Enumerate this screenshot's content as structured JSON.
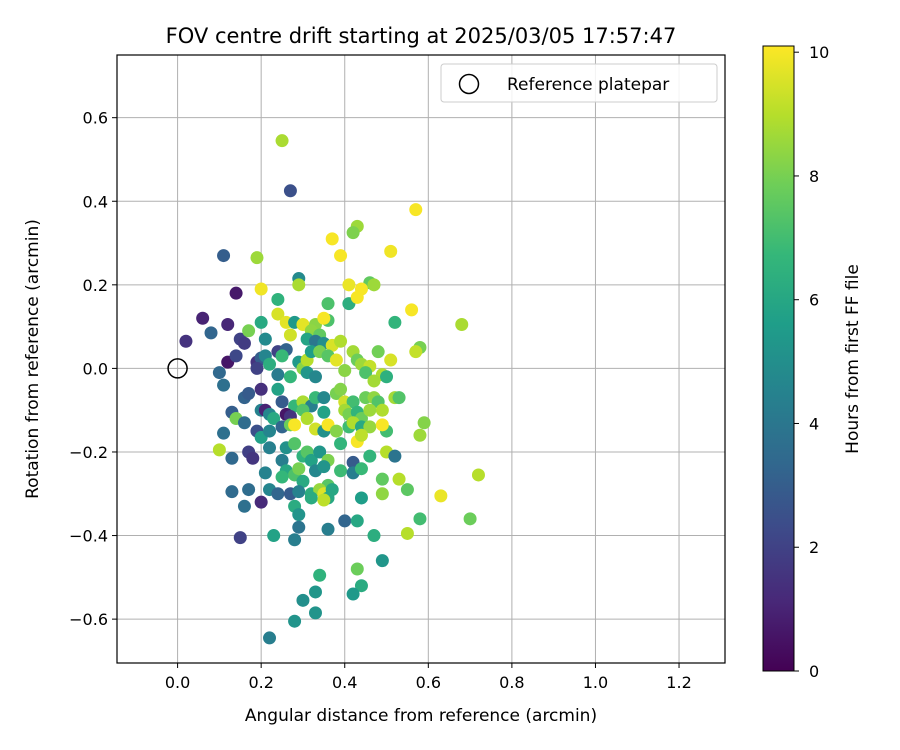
{
  "chart_data": {
    "type": "scatter",
    "title": "FOV centre drift starting at 2025/03/05 17:57:47",
    "xlabel": "Angular distance from reference (arcmin)",
    "ylabel": "Rotation from reference (arcmin)",
    "xlim": [
      -0.145,
      1.31
    ],
    "ylim": [
      -0.705,
      0.75
    ],
    "xticks": [
      "0.0",
      "0.2",
      "0.4",
      "0.6",
      "0.8",
      "1.0",
      "1.2"
    ],
    "xtick_values": [
      0.0,
      0.2,
      0.4,
      0.6,
      0.8,
      1.0,
      1.2
    ],
    "yticks": [
      "−0.6",
      "−0.4",
      "−0.2",
      "0.0",
      "0.2",
      "0.4",
      "0.6"
    ],
    "ytick_values": [
      -0.6,
      -0.4,
      -0.2,
      0.0,
      0.2,
      0.4,
      0.6
    ],
    "grid": true,
    "legend": {
      "placement": "top-right",
      "entries": [
        "Reference platepar"
      ]
    },
    "reference_point": {
      "x": 0.0,
      "y": 0.0,
      "marker": "hollow-circle"
    },
    "colorbar": {
      "label": "Hours from first FF file",
      "ticks": [
        "0",
        "2",
        "4",
        "6",
        "8",
        "10"
      ],
      "tick_values": [
        0,
        2,
        4,
        6,
        8,
        10
      ],
      "range": [
        0,
        10.1
      ],
      "colormap": "viridis",
      "stops": [
        "#440154",
        "#482878",
        "#3e4989",
        "#31688e",
        "#26828e",
        "#1f9e89",
        "#35b779",
        "#6ece58",
        "#b5de2b",
        "#fde725"
      ]
    },
    "points": [
      [
        0.25,
        0.545,
        8.8
      ],
      [
        0.27,
        0.425,
        2.5
      ],
      [
        0.57,
        0.38,
        10.0
      ],
      [
        0.43,
        0.34,
        8.6
      ],
      [
        0.42,
        0.325,
        8.1
      ],
      [
        0.37,
        0.31,
        10.0
      ],
      [
        0.39,
        0.27,
        10.0
      ],
      [
        0.51,
        0.28,
        9.9
      ],
      [
        0.11,
        0.27,
        3.0
      ],
      [
        0.19,
        0.265,
        8.6
      ],
      [
        0.29,
        0.215,
        4.8
      ],
      [
        0.29,
        0.2,
        8.8
      ],
      [
        0.41,
        0.2,
        9.8
      ],
      [
        0.46,
        0.205,
        7.6
      ],
      [
        0.44,
        0.19,
        10.0
      ],
      [
        0.47,
        0.2,
        8.6
      ],
      [
        0.2,
        0.19,
        9.9
      ],
      [
        0.14,
        0.18,
        0.7
      ],
      [
        0.24,
        0.165,
        6.5
      ],
      [
        0.36,
        0.155,
        7.2
      ],
      [
        0.41,
        0.155,
        6.3
      ],
      [
        0.43,
        0.17,
        10.0
      ],
      [
        0.56,
        0.14,
        10.0
      ],
      [
        0.24,
        0.13,
        9.5
      ],
      [
        0.06,
        0.12,
        1.0
      ],
      [
        0.12,
        0.105,
        1.1
      ],
      [
        0.2,
        0.11,
        6.1
      ],
      [
        0.26,
        0.11,
        9.7
      ],
      [
        0.28,
        0.11,
        5.4
      ],
      [
        0.3,
        0.105,
        9.7
      ],
      [
        0.33,
        0.105,
        8.3
      ],
      [
        0.36,
        0.115,
        7.2
      ],
      [
        0.35,
        0.12,
        10.0
      ],
      [
        0.52,
        0.11,
        6.6
      ],
      [
        0.68,
        0.105,
        8.8
      ],
      [
        0.02,
        0.065,
        1.5
      ],
      [
        0.08,
        0.085,
        3.3
      ],
      [
        0.15,
        0.07,
        2.0
      ],
      [
        0.17,
        0.09,
        8.0
      ],
      [
        0.16,
        0.06,
        1.8
      ],
      [
        0.21,
        0.07,
        4.8
      ],
      [
        0.27,
        0.08,
        9.4
      ],
      [
        0.32,
        0.09,
        8.4
      ],
      [
        0.34,
        0.08,
        7.6
      ],
      [
        0.31,
        0.07,
        5.9
      ],
      [
        0.33,
        0.065,
        4.0
      ],
      [
        0.35,
        0.06,
        5.0
      ],
      [
        0.37,
        0.055,
        9.5
      ],
      [
        0.39,
        0.065,
        8.9
      ],
      [
        0.58,
        0.05,
        8.0
      ],
      [
        0.12,
        0.015,
        0.6
      ],
      [
        0.14,
        0.03,
        2.2
      ],
      [
        0.19,
        0.015,
        1.5
      ],
      [
        0.2,
        0.025,
        3.0
      ],
      [
        0.21,
        0.03,
        4.6
      ],
      [
        0.22,
        0.01,
        6.3
      ],
      [
        0.24,
        0.04,
        2.0
      ],
      [
        0.26,
        0.045,
        3.2
      ],
      [
        0.25,
        0.03,
        6.8
      ],
      [
        0.29,
        0.015,
        5.4
      ],
      [
        0.3,
        0.0,
        8.3
      ],
      [
        0.31,
        0.02,
        9.0
      ],
      [
        0.32,
        0.04,
        5.6
      ],
      [
        0.34,
        0.04,
        8.0
      ],
      [
        0.36,
        0.03,
        7.4
      ],
      [
        0.38,
        0.02,
        9.7
      ],
      [
        0.42,
        0.04,
        8.7
      ],
      [
        0.43,
        0.02,
        7.8
      ],
      [
        0.44,
        0.01,
        8.6
      ],
      [
        0.46,
        0.005,
        9.2
      ],
      [
        0.48,
        0.04,
        7.9
      ],
      [
        0.49,
        -0.015,
        8.9
      ],
      [
        0.51,
        0.02,
        9.5
      ],
      [
        0.57,
        0.04,
        9.2
      ],
      [
        0.1,
        -0.01,
        3.4
      ],
      [
        0.11,
        -0.04,
        3.7
      ],
      [
        0.19,
        0.0,
        2.0
      ],
      [
        0.24,
        -0.015,
        4.2
      ],
      [
        0.27,
        -0.02,
        6.7
      ],
      [
        0.31,
        -0.01,
        5.3
      ],
      [
        0.33,
        -0.02,
        4.7
      ],
      [
        0.4,
        -0.005,
        8.3
      ],
      [
        0.45,
        -0.01,
        7.2
      ],
      [
        0.47,
        -0.03,
        8.7
      ],
      [
        0.5,
        -0.02,
        6.4
      ],
      [
        0.16,
        -0.07,
        3.2
      ],
      [
        0.17,
        -0.06,
        2.9
      ],
      [
        0.2,
        -0.05,
        1.4
      ],
      [
        0.24,
        -0.05,
        5.8
      ],
      [
        0.25,
        -0.08,
        2.9
      ],
      [
        0.28,
        -0.09,
        6.7
      ],
      [
        0.3,
        -0.08,
        8.8
      ],
      [
        0.32,
        -0.09,
        4.4
      ],
      [
        0.33,
        -0.07,
        6.8
      ],
      [
        0.35,
        -0.07,
        4.7
      ],
      [
        0.38,
        -0.06,
        8.0
      ],
      [
        0.39,
        -0.05,
        8.2
      ],
      [
        0.4,
        -0.08,
        9.4
      ],
      [
        0.42,
        -0.08,
        7.0
      ],
      [
        0.45,
        -0.07,
        7.8
      ],
      [
        0.47,
        -0.07,
        8.4
      ],
      [
        0.48,
        -0.08,
        7.3
      ],
      [
        0.49,
        -0.1,
        8.9
      ],
      [
        0.52,
        -0.07,
        8.7
      ],
      [
        0.53,
        -0.07,
        7.3
      ],
      [
        0.13,
        -0.105,
        3.0
      ],
      [
        0.14,
        -0.12,
        8.0
      ],
      [
        0.16,
        -0.13,
        3.6
      ],
      [
        0.2,
        -0.1,
        4.5
      ],
      [
        0.21,
        -0.1,
        1.0
      ],
      [
        0.22,
        -0.11,
        4.7
      ],
      [
        0.23,
        -0.12,
        6.1
      ],
      [
        0.26,
        -0.11,
        0.6
      ],
      [
        0.27,
        -0.115,
        1.5
      ],
      [
        0.3,
        -0.1,
        7.3
      ],
      [
        0.31,
        -0.12,
        8.9
      ],
      [
        0.35,
        -0.105,
        5.8
      ],
      [
        0.4,
        -0.1,
        8.7
      ],
      [
        0.41,
        -0.11,
        8.0
      ],
      [
        0.43,
        -0.105,
        6.6
      ],
      [
        0.44,
        -0.12,
        7.8
      ],
      [
        0.46,
        -0.1,
        8.6
      ],
      [
        0.11,
        -0.155,
        3.7
      ],
      [
        0.19,
        -0.15,
        2.5
      ],
      [
        0.2,
        -0.165,
        5.7
      ],
      [
        0.22,
        -0.15,
        4.6
      ],
      [
        0.25,
        -0.14,
        3.3
      ],
      [
        0.27,
        -0.135,
        7.8
      ],
      [
        0.28,
        -0.135,
        10.0
      ],
      [
        0.33,
        -0.145,
        9.4
      ],
      [
        0.35,
        -0.15,
        5.1
      ],
      [
        0.36,
        -0.135,
        10.0
      ],
      [
        0.38,
        -0.15,
        8.2
      ],
      [
        0.41,
        -0.14,
        6.9
      ],
      [
        0.42,
        -0.13,
        8.9
      ],
      [
        0.44,
        -0.14,
        6.1
      ],
      [
        0.46,
        -0.14,
        8.5
      ],
      [
        0.5,
        -0.15,
        7.0
      ],
      [
        0.49,
        -0.135,
        10.0
      ],
      [
        0.1,
        -0.195,
        9.0
      ],
      [
        0.13,
        -0.215,
        3.4
      ],
      [
        0.17,
        -0.2,
        1.9
      ],
      [
        0.18,
        -0.215,
        1.6
      ],
      [
        0.22,
        -0.19,
        4.4
      ],
      [
        0.26,
        -0.19,
        5.1
      ],
      [
        0.28,
        -0.18,
        7.3
      ],
      [
        0.3,
        -0.21,
        6.5
      ],
      [
        0.31,
        -0.2,
        7.4
      ],
      [
        0.32,
        -0.22,
        5.8
      ],
      [
        0.34,
        -0.2,
        5.3
      ],
      [
        0.36,
        -0.22,
        8.1
      ],
      [
        0.39,
        -0.18,
        6.6
      ],
      [
        0.43,
        -0.175,
        10.0
      ],
      [
        0.44,
        -0.16,
        9.1
      ],
      [
        0.46,
        -0.21,
        6.6
      ],
      [
        0.5,
        -0.2,
        9.0
      ],
      [
        0.52,
        -0.21,
        3.9
      ],
      [
        0.58,
        -0.16,
        8.6
      ],
      [
        0.59,
        -0.13,
        8.2
      ],
      [
        0.42,
        -0.225,
        2.9
      ],
      [
        0.21,
        -0.25,
        4.5
      ],
      [
        0.25,
        -0.22,
        4.3
      ],
      [
        0.26,
        -0.245,
        6.0
      ],
      [
        0.28,
        -0.255,
        7.2
      ],
      [
        0.29,
        -0.24,
        8.0
      ],
      [
        0.3,
        -0.27,
        6.1
      ],
      [
        0.33,
        -0.245,
        4.7
      ],
      [
        0.35,
        -0.235,
        5.2
      ],
      [
        0.36,
        -0.28,
        7.4
      ],
      [
        0.39,
        -0.245,
        6.9
      ],
      [
        0.42,
        -0.25,
        4.3
      ],
      [
        0.44,
        -0.24,
        6.8
      ],
      [
        0.49,
        -0.265,
        7.6
      ],
      [
        0.53,
        -0.265,
        9.0
      ],
      [
        0.72,
        -0.255,
        9.0
      ],
      [
        0.13,
        -0.295,
        3.5
      ],
      [
        0.17,
        -0.29,
        3.6
      ],
      [
        0.2,
        -0.32,
        1.2
      ],
      [
        0.22,
        -0.29,
        4.6
      ],
      [
        0.24,
        -0.3,
        3.3
      ],
      [
        0.25,
        -0.26,
        6.7
      ],
      [
        0.27,
        -0.3,
        2.9
      ],
      [
        0.28,
        -0.33,
        6.2
      ],
      [
        0.29,
        -0.295,
        4.5
      ],
      [
        0.32,
        -0.3,
        6.3
      ],
      [
        0.34,
        -0.29,
        8.5
      ],
      [
        0.35,
        -0.3,
        9.6
      ],
      [
        0.36,
        -0.31,
        6.0
      ],
      [
        0.37,
        -0.29,
        6.0
      ],
      [
        0.44,
        -0.31,
        5.6
      ],
      [
        0.49,
        -0.3,
        8.4
      ],
      [
        0.55,
        -0.29,
        7.5
      ],
      [
        0.63,
        -0.305,
        9.8
      ],
      [
        0.16,
        -0.33,
        3.7
      ],
      [
        0.29,
        -0.35,
        5.2
      ],
      [
        0.32,
        -0.31,
        6.2
      ],
      [
        0.35,
        -0.315,
        9.1
      ],
      [
        0.15,
        -0.405,
        2.0
      ],
      [
        0.23,
        -0.4,
        5.8
      ],
      [
        0.28,
        -0.41,
        4.3
      ],
      [
        0.29,
        -0.38,
        3.9
      ],
      [
        0.36,
        -0.385,
        4.3
      ],
      [
        0.4,
        -0.365,
        3.3
      ],
      [
        0.43,
        -0.365,
        6.0
      ],
      [
        0.47,
        -0.4,
        6.3
      ],
      [
        0.55,
        -0.395,
        9.0
      ],
      [
        0.58,
        -0.36,
        7.0
      ],
      [
        0.7,
        -0.36,
        7.8
      ],
      [
        0.34,
        -0.495,
        6.5
      ],
      [
        0.43,
        -0.48,
        7.8
      ],
      [
        0.44,
        -0.52,
        6.2
      ],
      [
        0.49,
        -0.46,
        5.3
      ],
      [
        0.3,
        -0.555,
        5.0
      ],
      [
        0.33,
        -0.535,
        5.3
      ],
      [
        0.42,
        -0.54,
        5.4
      ],
      [
        0.28,
        -0.605,
        5.2
      ],
      [
        0.33,
        -0.585,
        5.2
      ],
      [
        0.22,
        -0.645,
        4.3
      ]
    ]
  }
}
